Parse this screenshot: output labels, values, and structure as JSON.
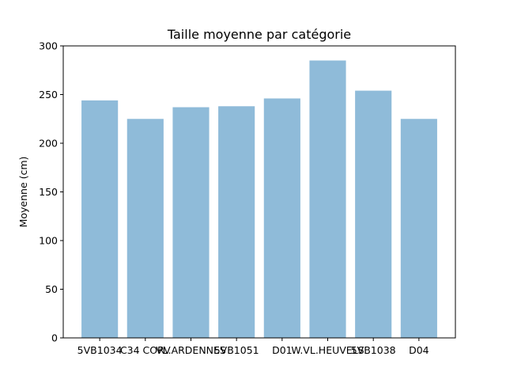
{
  "chart_data": {
    "type": "bar",
    "title": "Taille moyenne par catégorie",
    "xlabel": "",
    "ylabel": "Moyenne (cm)",
    "categories": [
      "5VB1034",
      "C34 CORV",
      "VL.ARDENNES",
      "5VB1051",
      "D01",
      "W.VL.HEUVELS",
      "5VB1038",
      "D04"
    ],
    "values": [
      244,
      225,
      237,
      238,
      246,
      285,
      254,
      225
    ],
    "ylim": [
      0,
      300
    ],
    "yticks": [
      0,
      50,
      100,
      150,
      200,
      250,
      300
    ],
    "grid": false,
    "legend": "none",
    "bar_color": "#8fbbd9"
  }
}
